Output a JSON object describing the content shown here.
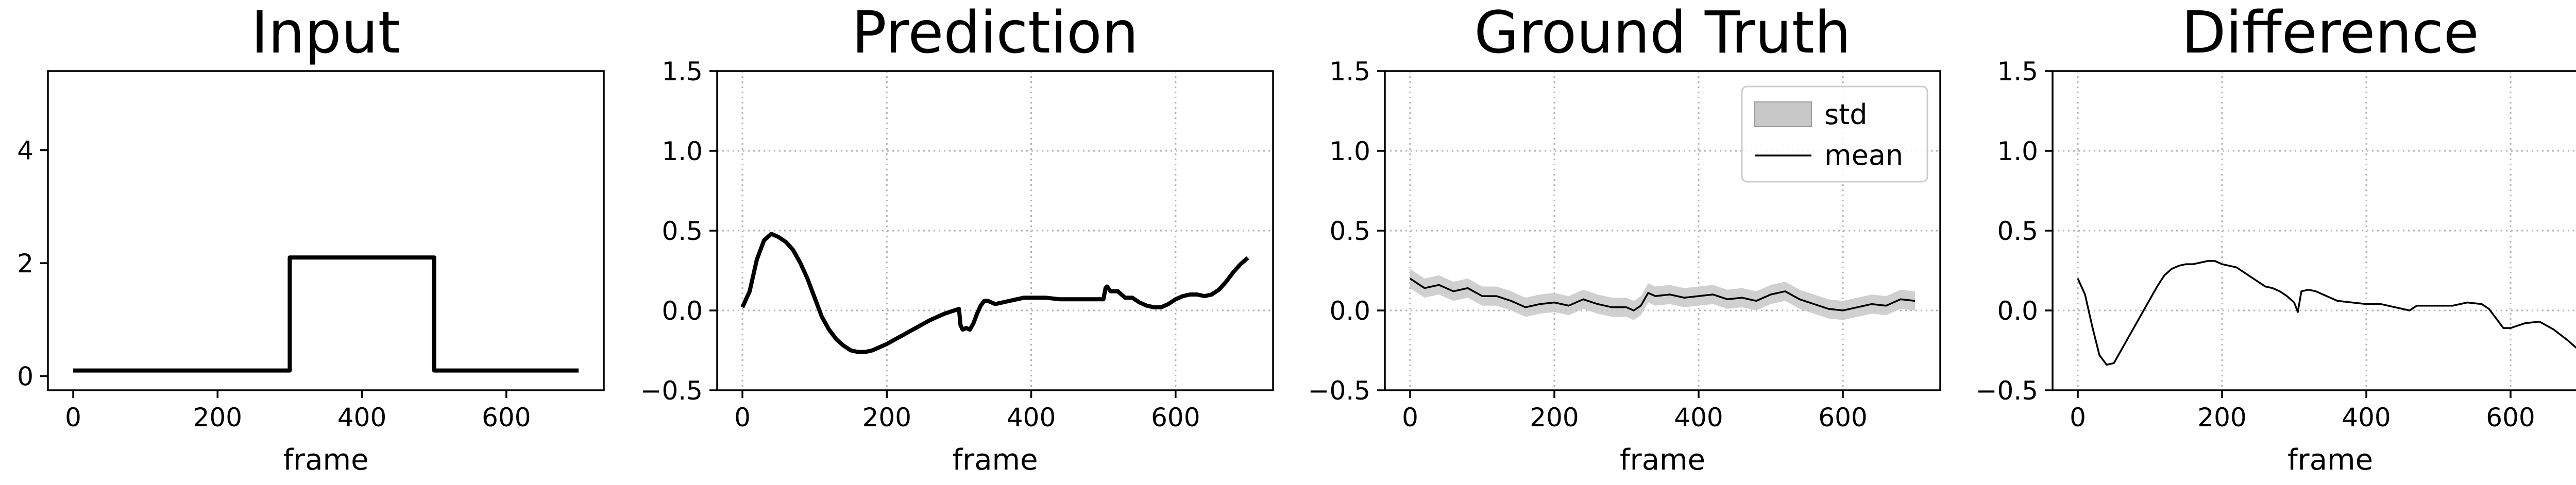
{
  "chart_data": [
    {
      "type": "line",
      "title": "Input",
      "xlabel": "frame",
      "ylabel": "",
      "xlim": [
        -35,
        735
      ],
      "ylim": [
        -0.25,
        5.4
      ],
      "xticks": [
        "0",
        "200",
        "400",
        "600"
      ],
      "yticks": [
        "0",
        "2",
        "4"
      ],
      "grid": false,
      "series": [
        {
          "x": [
            0,
            300,
            300,
            500,
            500,
            700
          ],
          "y": [
            0.1,
            0.1,
            2.1,
            2.1,
            0.1,
            0.1
          ]
        }
      ]
    },
    {
      "type": "line",
      "title": "Prediction",
      "xlabel": "frame",
      "ylabel": "",
      "xlim": [
        -35,
        735
      ],
      "ylim": [
        -0.5,
        1.5
      ],
      "xticks": [
        "0",
        "200",
        "400",
        "600"
      ],
      "yticks": [
        "−0.5",
        "0.0",
        "0.5",
        "1.0",
        "1.5"
      ],
      "grid": true,
      "series": [
        {
          "x": [
            0,
            10,
            20,
            30,
            40,
            50,
            60,
            70,
            80,
            90,
            100,
            110,
            120,
            130,
            140,
            150,
            160,
            170,
            180,
            190,
            200,
            220,
            240,
            260,
            280,
            300,
            302,
            305,
            310,
            315,
            320,
            325,
            330,
            335,
            340,
            345,
            350,
            360,
            370,
            380,
            390,
            400,
            420,
            440,
            460,
            480,
            500,
            503,
            505,
            510,
            520,
            530,
            540,
            550,
            560,
            570,
            580,
            590,
            600,
            610,
            620,
            630,
            640,
            650,
            660,
            670,
            680,
            690,
            700
          ],
          "y": [
            0.02,
            0.12,
            0.32,
            0.44,
            0.48,
            0.46,
            0.43,
            0.38,
            0.3,
            0.2,
            0.08,
            -0.04,
            -0.12,
            -0.18,
            -0.22,
            -0.25,
            -0.26,
            -0.26,
            -0.25,
            -0.23,
            -0.21,
            -0.16,
            -0.11,
            -0.06,
            -0.02,
            0.01,
            -0.09,
            -0.12,
            -0.11,
            -0.12,
            -0.08,
            -0.02,
            0.03,
            0.06,
            0.06,
            0.05,
            0.04,
            0.05,
            0.06,
            0.07,
            0.08,
            0.08,
            0.08,
            0.07,
            0.07,
            0.07,
            0.07,
            0.14,
            0.15,
            0.12,
            0.12,
            0.08,
            0.08,
            0.05,
            0.03,
            0.02,
            0.02,
            0.04,
            0.07,
            0.09,
            0.1,
            0.1,
            0.09,
            0.1,
            0.13,
            0.18,
            0.24,
            0.29,
            0.33
          ]
        }
      ]
    },
    {
      "type": "area",
      "title": "Ground Truth",
      "xlabel": "frame",
      "ylabel": "",
      "xlim": [
        -35,
        735
      ],
      "ylim": [
        -0.5,
        1.5
      ],
      "xticks": [
        "0",
        "200",
        "400",
        "600"
      ],
      "yticks": [
        "−0.5",
        "0.0",
        "0.5",
        "1.0",
        "1.5"
      ],
      "grid": true,
      "legend": {
        "placement": "upper-right",
        "entries": [
          "std",
          "mean"
        ]
      },
      "std_band": 0.06,
      "series": [
        {
          "name": "mean",
          "x": [
            0,
            20,
            40,
            60,
            80,
            100,
            120,
            140,
            160,
            180,
            200,
            220,
            240,
            260,
            280,
            300,
            310,
            320,
            330,
            340,
            360,
            380,
            400,
            420,
            440,
            460,
            480,
            500,
            520,
            540,
            560,
            580,
            600,
            620,
            640,
            660,
            680,
            700
          ],
          "y": [
            0.2,
            0.14,
            0.16,
            0.12,
            0.14,
            0.09,
            0.09,
            0.06,
            0.02,
            0.04,
            0.05,
            0.03,
            0.07,
            0.04,
            0.02,
            0.02,
            0.0,
            0.03,
            0.11,
            0.09,
            0.1,
            0.08,
            0.09,
            0.1,
            0.07,
            0.08,
            0.06,
            0.1,
            0.12,
            0.07,
            0.04,
            0.01,
            0.0,
            0.02,
            0.04,
            0.03,
            0.07,
            0.06
          ]
        }
      ]
    },
    {
      "type": "line",
      "title": "Difference",
      "xlabel": "frame",
      "ylabel": "",
      "xlim": [
        -35,
        735
      ],
      "ylim": [
        -0.5,
        1.5
      ],
      "xticks": [
        "0",
        "200",
        "400",
        "600"
      ],
      "yticks": [
        "−0.5",
        "0.0",
        "0.5",
        "1.0",
        "1.5"
      ],
      "grid": true,
      "series": [
        {
          "x": [
            0,
            10,
            20,
            30,
            40,
            50,
            60,
            70,
            80,
            90,
            100,
            110,
            120,
            130,
            140,
            150,
            160,
            170,
            180,
            190,
            200,
            210,
            220,
            230,
            240,
            250,
            260,
            270,
            280,
            290,
            300,
            305,
            310,
            320,
            330,
            340,
            350,
            360,
            380,
            400,
            420,
            440,
            460,
            470,
            480,
            500,
            520,
            540,
            560,
            570,
            580,
            590,
            600,
            620,
            640,
            660,
            680,
            690,
            700
          ],
          "y": [
            0.2,
            0.1,
            -0.1,
            -0.28,
            -0.34,
            -0.33,
            -0.25,
            -0.17,
            -0.09,
            -0.01,
            0.07,
            0.15,
            0.22,
            0.26,
            0.28,
            0.29,
            0.29,
            0.3,
            0.31,
            0.31,
            0.29,
            0.28,
            0.27,
            0.24,
            0.21,
            0.18,
            0.15,
            0.14,
            0.12,
            0.09,
            0.05,
            -0.01,
            0.12,
            0.13,
            0.12,
            0.1,
            0.08,
            0.06,
            0.05,
            0.04,
            0.04,
            0.02,
            0.0,
            0.03,
            0.03,
            0.03,
            0.03,
            0.05,
            0.04,
            0.01,
            -0.05,
            -0.11,
            -0.11,
            -0.08,
            -0.07,
            -0.12,
            -0.19,
            -0.23,
            -0.27
          ]
        }
      ]
    }
  ]
}
